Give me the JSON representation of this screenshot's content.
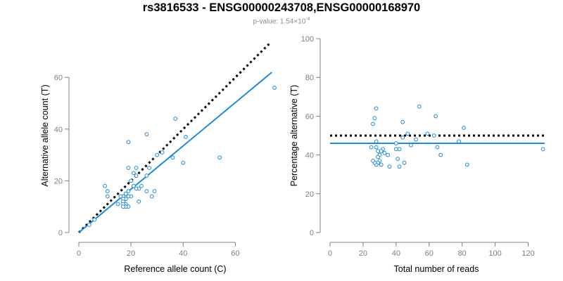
{
  "header": {
    "title": "rs3816533 - ENSG00000243708,ENSG00000168970",
    "pvalue_prefix": "p-value: 1.54×10",
    "pvalue_exponent": "-4"
  },
  "colors": {
    "points": "#1f8ad8",
    "fit_line": "#1f8ad8",
    "reference_line": "#000000",
    "axis": "#808080"
  },
  "chart_data": [
    {
      "type": "scatter",
      "xlabel": "Reference allele count (C)",
      "ylabel": "Alternative allele count (T)",
      "xlim": [
        0,
        75
      ],
      "ylim": [
        0,
        75
      ],
      "x_ticks": [
        0,
        20,
        40,
        60
      ],
      "y_ticks": [
        0,
        20,
        40,
        60
      ],
      "points": [
        [
          75,
          56
        ],
        [
          54,
          29
        ],
        [
          41,
          37
        ],
        [
          40,
          27
        ],
        [
          37,
          44
        ],
        [
          36,
          29
        ],
        [
          32,
          31
        ],
        [
          30,
          30
        ],
        [
          29,
          16
        ],
        [
          28,
          14
        ],
        [
          27,
          25
        ],
        [
          26,
          38
        ],
        [
          26,
          22
        ],
        [
          26,
          16
        ],
        [
          24,
          18
        ],
        [
          23,
          17
        ],
        [
          23,
          12
        ],
        [
          22,
          25
        ],
        [
          22,
          22
        ],
        [
          22,
          17
        ],
        [
          21,
          23
        ],
        [
          21,
          18
        ],
        [
          20,
          20
        ],
        [
          20,
          14
        ],
        [
          19,
          35
        ],
        [
          19,
          25
        ],
        [
          19,
          16
        ],
        [
          19,
          14
        ],
        [
          19,
          10
        ],
        [
          18,
          15
        ],
        [
          18,
          13
        ],
        [
          18,
          11
        ],
        [
          18,
          10
        ],
        [
          17,
          14
        ],
        [
          17,
          13
        ],
        [
          17,
          12
        ],
        [
          17,
          11
        ],
        [
          17,
          10
        ],
        [
          16,
          14
        ],
        [
          15,
          11
        ],
        [
          11,
          14
        ],
        [
          11,
          16
        ],
        [
          10,
          18
        ],
        [
          6,
          5
        ],
        [
          4,
          3
        ]
      ],
      "fit_line": {
        "from": [
          0,
          0
        ],
        "to": [
          74,
          62
        ]
      },
      "reference_line": {
        "from": [
          0,
          0
        ],
        "to": [
          73,
          73
        ],
        "style": "dotted"
      }
    },
    {
      "type": "scatter",
      "xlabel": "Total number of reads",
      "ylabel": "Percentage alternative (T)",
      "xlim": [
        0,
        130
      ],
      "ylim": [
        0,
        100
      ],
      "x_ticks": [
        0,
        20,
        40,
        60,
        80,
        100,
        120
      ],
      "y_ticks": [
        0,
        20,
        40,
        60,
        80,
        100
      ],
      "points": [
        [
          129,
          43
        ],
        [
          83,
          35
        ],
        [
          81,
          54
        ],
        [
          78,
          47
        ],
        [
          67,
          40
        ],
        [
          65,
          44
        ],
        [
          64,
          60
        ],
        [
          63,
          50
        ],
        [
          59,
          51
        ],
        [
          54,
          65
        ],
        [
          52,
          48
        ],
        [
          49,
          45
        ],
        [
          47,
          51
        ],
        [
          45,
          36
        ],
        [
          44,
          57
        ],
        [
          44,
          49
        ],
        [
          42,
          43
        ],
        [
          42,
          34
        ],
        [
          41,
          38
        ],
        [
          40,
          43
        ],
        [
          40,
          46
        ],
        [
          36,
          34
        ],
        [
          35,
          40
        ],
        [
          33,
          41
        ],
        [
          32,
          43
        ],
        [
          31,
          42
        ],
        [
          31,
          35
        ],
        [
          30,
          37
        ],
        [
          30,
          40
        ],
        [
          29,
          36
        ],
        [
          29,
          39
        ],
        [
          29,
          42
        ],
        [
          28,
          35
        ],
        [
          28,
          44
        ],
        [
          28,
          47
        ],
        [
          28,
          64
        ],
        [
          27,
          59
        ],
        [
          27,
          36
        ],
        [
          26,
          56
        ],
        [
          25,
          44
        ],
        [
          26,
          37
        ]
      ],
      "fit_line": {
        "y": 46,
        "x_from": 0,
        "x_to": 130
      },
      "reference_line": {
        "y": 50,
        "x_from": 0,
        "x_to": 130,
        "style": "dotted"
      }
    }
  ]
}
